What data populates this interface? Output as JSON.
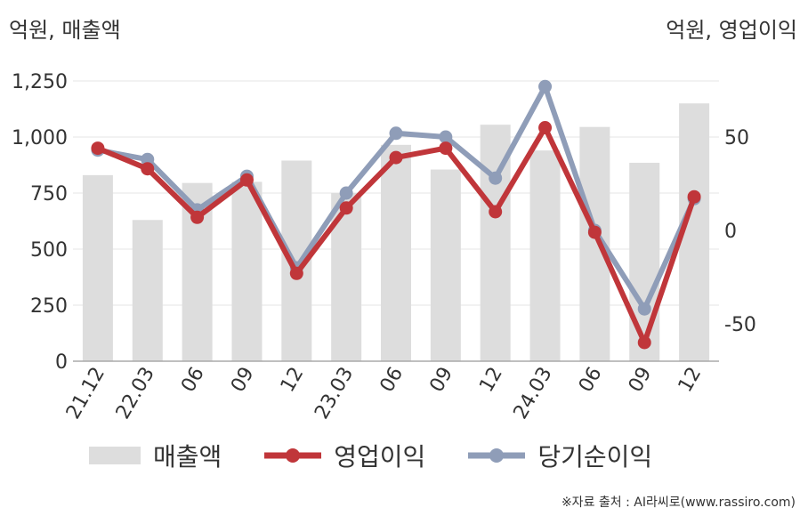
{
  "unit_left": "억원, 매출액",
  "unit_right": "억원, 영업이익",
  "source": "※자료 출처 : AI라씨로(www.rassiro.com)",
  "chart_data": {
    "type": "bar",
    "categories": [
      "21.12",
      "22.03",
      "06",
      "09",
      "12",
      "23.03",
      "06",
      "09",
      "12",
      "24.03",
      "06",
      "09",
      "12"
    ],
    "series": [
      {
        "name": "매출액",
        "type": "bar",
        "axis": "left",
        "color": "#dddddd",
        "values": [
          830,
          630,
          795,
          800,
          895,
          750,
          965,
          855,
          1055,
          940,
          1045,
          885,
          1150
        ]
      },
      {
        "name": "영업이익",
        "type": "line",
        "axis": "right",
        "color": "#c0363a",
        "values": [
          44,
          33,
          7,
          27,
          -23,
          12,
          39,
          44,
          10,
          55,
          -1,
          -60,
          18
        ]
      },
      {
        "name": "당기순이익",
        "type": "line",
        "axis": "right",
        "color": "#8f9db8",
        "values": [
          43,
          38,
          11,
          29,
          -20,
          20,
          52,
          50,
          28,
          77,
          0,
          -42,
          17
        ]
      }
    ],
    "y_left": {
      "min": 0,
      "max": 1250,
      "ticks": [
        0,
        250,
        500,
        750,
        1000,
        1250
      ],
      "tick_labels": [
        "0",
        "250",
        "500",
        "750",
        "1,000",
        "1,250"
      ]
    },
    "y_right": {
      "min": -70,
      "max": 80,
      "ticks": [
        -50,
        0,
        50
      ],
      "tick_labels": [
        "-50",
        "0",
        "50"
      ]
    },
    "grid": true,
    "legend": "bottom"
  }
}
